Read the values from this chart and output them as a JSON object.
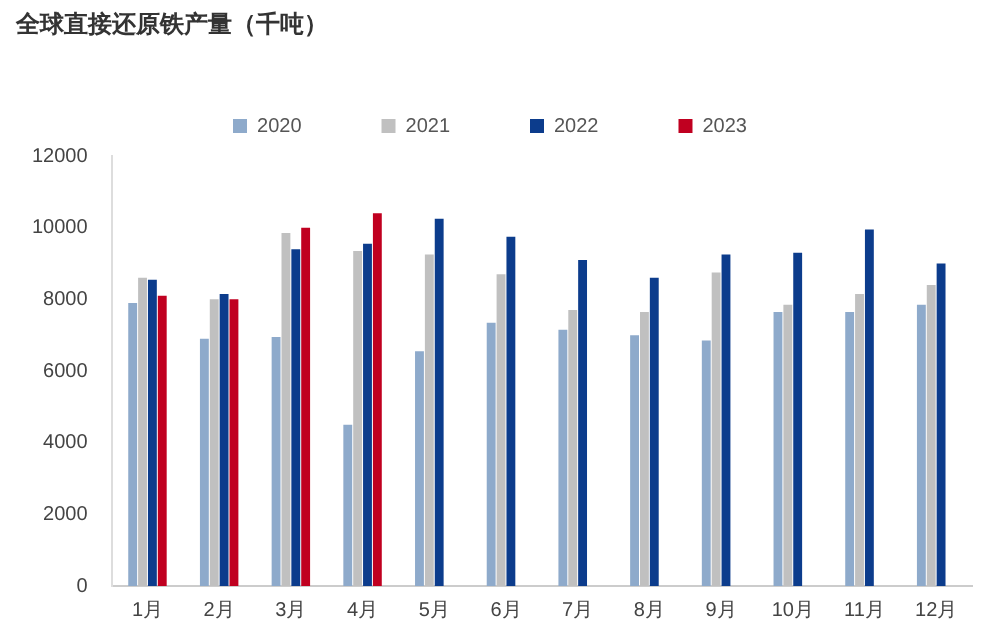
{
  "chart_data": {
    "type": "bar",
    "title": "全球直接还原铁产量（千吨）",
    "categories": [
      "1月",
      "2月",
      "3月",
      "4月",
      "5月",
      "6月",
      "7月",
      "8月",
      "9月",
      "10月",
      "11月",
      "12月"
    ],
    "series": [
      {
        "name": "2020",
        "color": "#8eaacb",
        "values": [
          7900,
          6900,
          6950,
          4500,
          6550,
          7350,
          7150,
          7000,
          6850,
          7650,
          7650,
          7850
        ]
      },
      {
        "name": "2021",
        "color": "#c0c0c0",
        "values": [
          8600,
          8000,
          9850,
          9350,
          9250,
          8700,
          7700,
          7650,
          8750,
          7850,
          8150,
          8400
        ]
      },
      {
        "name": "2022",
        "color": "#0c3c8c",
        "values": [
          8550,
          8150,
          9400,
          9550,
          10250,
          9750,
          9100,
          8600,
          9250,
          9300,
          9950,
          9000
        ]
      },
      {
        "name": "2023",
        "color": "#c00020",
        "values": [
          8100,
          8000,
          10000,
          10400,
          null,
          null,
          null,
          null,
          null,
          null,
          null,
          null
        ]
      }
    ],
    "ylim": [
      0,
      12000
    ],
    "yticks": [
      0,
      2000,
      4000,
      6000,
      8000,
      10000,
      12000
    ],
    "grid": false,
    "legend": "top"
  }
}
